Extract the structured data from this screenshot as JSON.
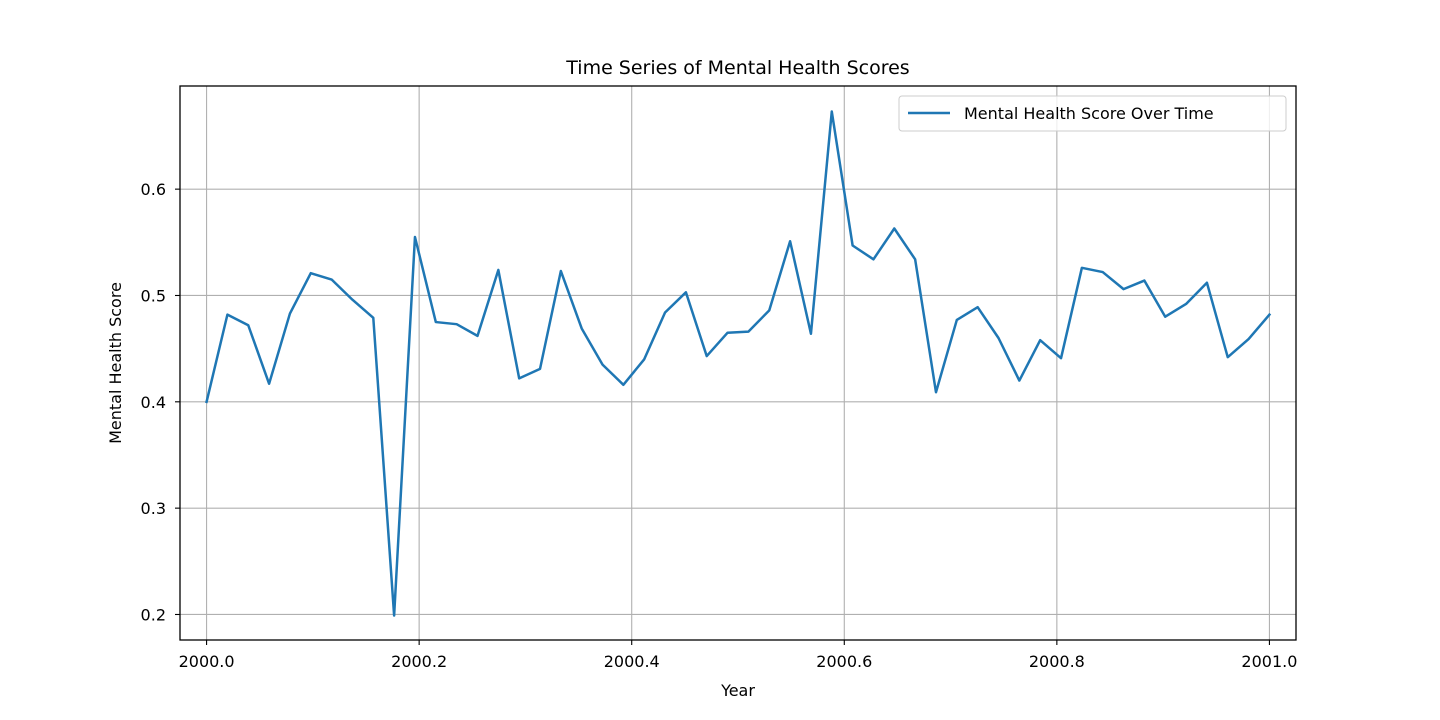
{
  "chart_data": {
    "type": "line",
    "title": "Time Series of Mental Health Scores",
    "xlabel": "Year",
    "ylabel": "Mental Health Score",
    "xlim": [
      1999.975,
      2001.025
    ],
    "ylim": [
      0.176,
      0.697
    ],
    "xticks": [
      2000.0,
      2000.2,
      2000.4,
      2000.6,
      2000.8,
      2001.0
    ],
    "xtick_labels": [
      "2000.0",
      "2000.2",
      "2000.4",
      "2000.6",
      "2000.8",
      "2001.0"
    ],
    "yticks": [
      0.2,
      0.3,
      0.4,
      0.5,
      0.6
    ],
    "ytick_labels": [
      "0.2",
      "0.3",
      "0.4",
      "0.5",
      "0.6"
    ],
    "grid": true,
    "legend_position": "top-right",
    "series": [
      {
        "name": "Mental Health Score Over Time",
        "color": "#1f77b4",
        "x_start": 2000.0,
        "x_end": 2001.0,
        "values": [
          0.4,
          0.482,
          0.472,
          0.417,
          0.483,
          0.521,
          0.515,
          0.496,
          0.479,
          0.199,
          0.555,
          0.475,
          0.473,
          0.462,
          0.524,
          0.422,
          0.431,
          0.523,
          0.469,
          0.435,
          0.416,
          0.44,
          0.484,
          0.503,
          0.443,
          0.465,
          0.466,
          0.486,
          0.551,
          0.464,
          0.673,
          0.547,
          0.534,
          0.563,
          0.534,
          0.409,
          0.477,
          0.489,
          0.46,
          0.42,
          0.458,
          0.441,
          0.526,
          0.522,
          0.506,
          0.514,
          0.48,
          0.492,
          0.512,
          0.442,
          0.459,
          0.482
        ]
      }
    ]
  }
}
